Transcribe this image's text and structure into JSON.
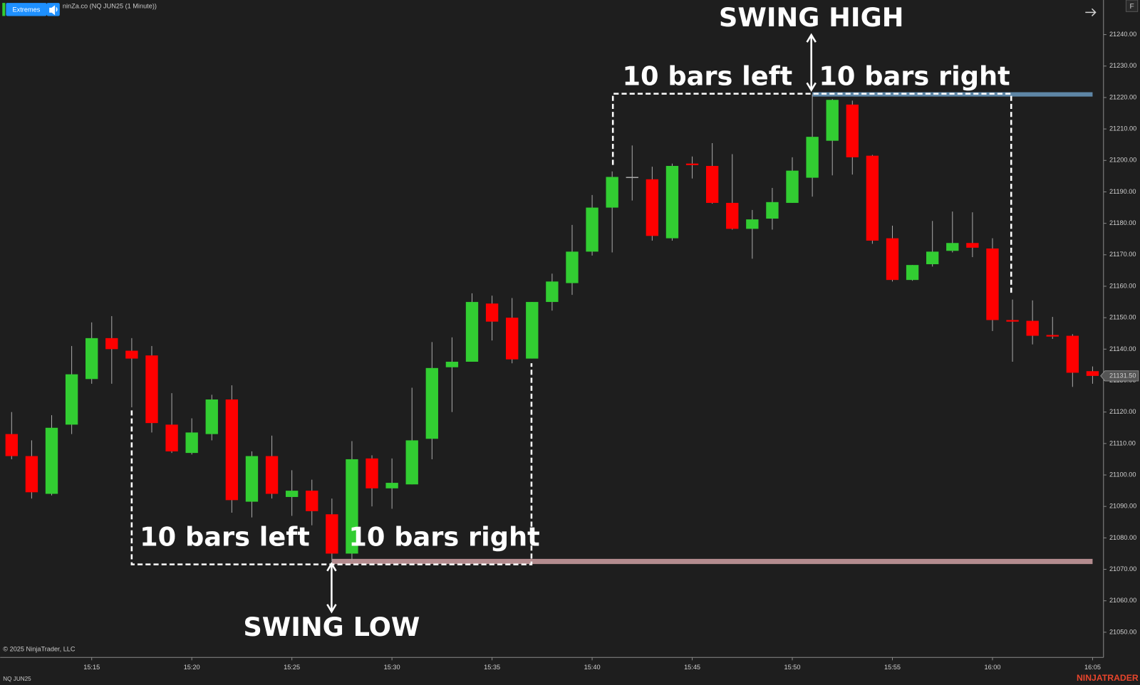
{
  "header": {
    "indicator_button": "Extremes",
    "chart_title": "ninZa.co (NQ JUN25 (1 Minute))",
    "f_button": "F"
  },
  "chart_data": {
    "type": "candlestick",
    "categories": [
      null,
      null,
      null,
      null,
      "15:15",
      null,
      null,
      null,
      null,
      "15:20",
      null,
      null,
      null,
      null,
      "15:25",
      null,
      null,
      null,
      null,
      "15:30",
      null,
      null,
      null,
      null,
      "15:35",
      null,
      null,
      null,
      null,
      "15:40",
      null,
      null,
      null,
      null,
      "15:45",
      null,
      null,
      null,
      null,
      "15:50",
      null,
      null,
      null,
      null,
      "15:55",
      null,
      null,
      null,
      null,
      "16:00",
      null,
      null,
      null,
      null,
      "16:05"
    ],
    "open": [
      21113,
      21106,
      21094,
      21116,
      21130.5,
      21143.5,
      21139.5,
      21138,
      21116,
      21107,
      21113,
      21124,
      21091.5,
      21106,
      21093,
      21095,
      21087.5,
      21075,
      21105.25,
      21095.75,
      21097,
      21111.5,
      21134.25,
      21136,
      21154.5,
      21150,
      21137,
      21155,
      21161,
      21171,
      21185,
      21194.75,
      21194,
      21175.25,
      21199,
      21198.25,
      21186.5,
      21178.25,
      21181.5,
      21186.5,
      21194.5,
      21206.25,
      21217.75,
      21201.5,
      21175.25,
      21162,
      21167,
      21171.25,
      21173.75,
      21172,
      21149.25,
      21149,
      21144.5,
      21144.25,
      21133
    ],
    "high": [
      21120,
      21111,
      21119,
      21141,
      21148.5,
      21150.5,
      21143.5,
      21141,
      21126,
      21118,
      21125.5,
      21128.5,
      21107.5,
      21112.5,
      21101.5,
      21098.5,
      21092.5,
      21110.75,
      21106.25,
      21105.25,
      21127.75,
      21142.25,
      21143.75,
      21157.75,
      21157,
      21156.25,
      21155,
      21164,
      21179.5,
      21189,
      21196.5,
      21204.75,
      21198,
      21199,
      21201.25,
      21205.5,
      21202,
      21184.25,
      21191.25,
      21201,
      21221,
      21219.5,
      21219,
      21201.75,
      21179.25,
      21166.75,
      21180.75,
      21183.75,
      21183.5,
      21175.25,
      21155.75,
      21155.5,
      21150.25,
      21144.75,
      21134.5
    ],
    "low": [
      21105,
      21092.5,
      21093.5,
      21113,
      21129,
      21129,
      21121.5,
      21113.5,
      21107,
      21106.5,
      21111,
      21088,
      21086.5,
      21092.5,
      21087,
      21084,
      21072.5,
      21072.75,
      21090,
      21089.25,
      21097,
      21105,
      21120,
      21136,
      21142.75,
      21135.5,
      21137,
      21152.25,
      21157.25,
      21169.75,
      21170.75,
      21187.25,
      21174.5,
      21174.5,
      21194.25,
      21186.25,
      21178,
      21168.75,
      21178,
      21186.5,
      21188.5,
      21195.25,
      21195.5,
      21173.5,
      21161.5,
      21161.75,
      21166.25,
      21170.75,
      21169.25,
      21145.75,
      21136,
      21141.5,
      21143.25,
      21128,
      21129
    ],
    "close": [
      21106,
      21094.5,
      21115,
      21132,
      21143.5,
      21140,
      21137,
      21116.5,
      21107.5,
      21113.5,
      21124,
      21092,
      21106,
      21094,
      21095,
      21088.5,
      21075,
      21105,
      21095.75,
      21097.5,
      21111,
      21134,
      21136,
      21155,
      21148.75,
      21136.75,
      21155,
      21161.5,
      21171,
      21185,
      21194.75,
      21194.75,
      21176,
      21198.25,
      21198.5,
      21186.5,
      21178.25,
      21181.25,
      21186.75,
      21196.75,
      21207.5,
      21219.25,
      21201,
      21174.5,
      21162,
      21166.75,
      21171,
      21173.75,
      21172.25,
      21149.25,
      21148.75,
      21144.25,
      21144,
      21132.5,
      21131.5
    ],
    "up_color": "#32cd32",
    "down_color": "#ff0000",
    "wick_color": "#a8a8a8",
    "ylim": [
      21042,
      21251
    ],
    "yticks": [
      {
        "value": 21050,
        "label": "21050.00"
      },
      {
        "value": 21060,
        "label": "21060.00"
      },
      {
        "value": 21070,
        "label": "21070.00"
      },
      {
        "value": 21080,
        "label": "21080.00"
      },
      {
        "value": 21090,
        "label": "21090.00"
      },
      {
        "value": 21100,
        "label": "21100.00"
      },
      {
        "value": 21110,
        "label": "21110.00"
      },
      {
        "value": 21120,
        "label": "21120.00"
      },
      {
        "value": 21130,
        "label": "21130.00"
      },
      {
        "value": 21140,
        "label": "21140.00"
      },
      {
        "value": 21150,
        "label": "21150.00"
      },
      {
        "value": 21160,
        "label": "21160.00"
      },
      {
        "value": 21170,
        "label": "21170.00"
      },
      {
        "value": 21180,
        "label": "21180.00"
      },
      {
        "value": 21190,
        "label": "21190.00"
      },
      {
        "value": 21200,
        "label": "21200.00"
      },
      {
        "value": 21210,
        "label": "21210.00"
      },
      {
        "value": 21220,
        "label": "21220.00"
      },
      {
        "value": 21230,
        "label": "21230.00"
      },
      {
        "value": 21240,
        "label": "21240.00"
      }
    ],
    "last_price": {
      "value": 21131.5,
      "label": "21131.50"
    },
    "swing_high": 21221,
    "swing_high_color": "#5e86a6",
    "swing_low": 21072.5,
    "swing_low_color": "#b48c8f",
    "annotations": {
      "swing_high": "SWING HIGH",
      "high_left": "10 bars left",
      "high_right": "10 bars right",
      "low_left": "10 bars left",
      "low_right": "10 bars right",
      "swing_low": "SWING LOW"
    }
  },
  "footer": {
    "copyright": "© 2025 NinjaTrader, LLC",
    "instrument": "NQ JUN25",
    "logo": "NINJATRADER"
  }
}
